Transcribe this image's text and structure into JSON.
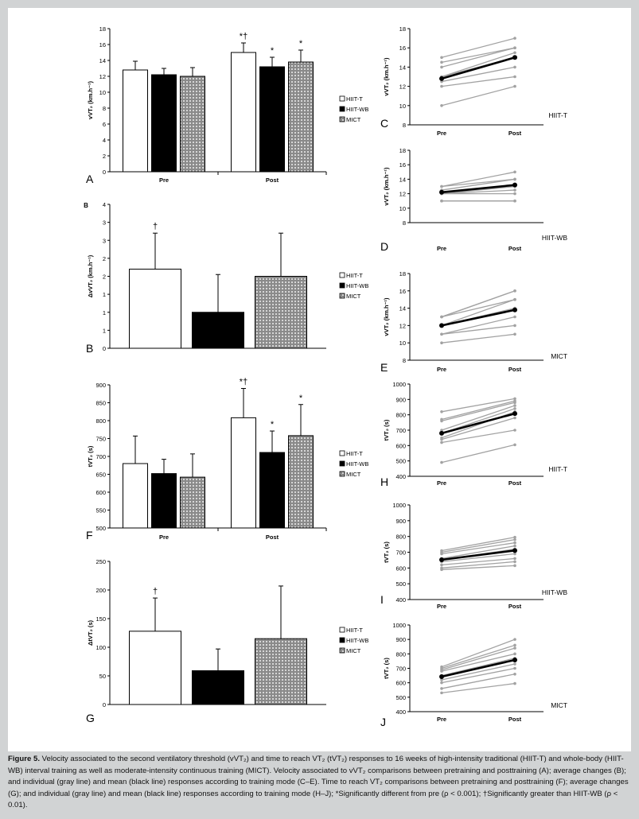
{
  "colors": {
    "white_bar": "#ffffff",
    "black_bar": "#000000",
    "pattern_bg": "#8a8a8a",
    "pattern_dot": "#d6d6d6",
    "individual_line": "#a2a2a2",
    "mean_line": "#000000"
  },
  "legend": [
    "HIIT-T",
    "HIIT-WB",
    "MICT"
  ],
  "caption": {
    "label": "Figure 5.",
    "text": "Velocity associated to the second ventilatory threshold (vVT₂) and time to reach VT₂ (tVT₂) responses to 16 weeks of high-intensity traditional (HIIT-T) and whole-body (HIIT-WB) interval training as well as moderate-intensity continuous training (MICT). Velocity associated to vVT₂ comparisons between pretraining and posttraining (A); average changes (B); and individual (gray line) and mean (black line) responses according to training mode (C–E). Time to reach VT₂ comparisons between pretraining and posttraining (F); average changes (G); and individual (gray line) and mean (black line) responses according to training mode (H–J); *Significantly different from pre (ρ < 0.001); †Significantly greater than HIIT-WB (ρ < 0.01)."
  },
  "chart_data": [
    {
      "panel": "A",
      "type": "bar",
      "ylabel": "vVT₂ (km.h⁻¹)",
      "ylim": [
        0,
        18
      ],
      "yticks": [
        "0",
        "2",
        "4",
        "6",
        "8",
        "10",
        "12",
        "14",
        "16",
        "18"
      ],
      "categories": [
        "Pre",
        "Post"
      ],
      "series": [
        {
          "name": "HIIT-T",
          "values": [
            12.8,
            15.0
          ],
          "err": [
            1.1,
            1.2
          ],
          "marks": [
            "",
            "*†"
          ]
        },
        {
          "name": "HIIT-WB",
          "values": [
            12.2,
            13.2
          ],
          "err": [
            0.8,
            1.2
          ],
          "marks": [
            "",
            "*"
          ]
        },
        {
          "name": "MICT",
          "values": [
            12.0,
            13.8
          ],
          "err": [
            1.1,
            1.5
          ],
          "marks": [
            "",
            "*"
          ]
        }
      ]
    },
    {
      "panel": "B",
      "type": "bar",
      "ylabel": "ΔvVT₂ (km.h⁻¹)",
      "ylim": [
        0,
        4
      ],
      "yticks": [
        "0",
        "1",
        "1",
        "1",
        "2",
        "2",
        "3",
        "3",
        "4"
      ],
      "categories": [
        ""
      ],
      "series": [
        {
          "name": "HIIT-T",
          "values": [
            2.2
          ],
          "err": [
            1.0
          ],
          "marks": [
            "†"
          ]
        },
        {
          "name": "HIIT-WB",
          "values": [
            1.0
          ],
          "err": [
            1.05
          ],
          "marks": [
            ""
          ]
        },
        {
          "name": "MICT",
          "values": [
            2.0
          ],
          "err": [
            1.2
          ],
          "marks": [
            ""
          ]
        }
      ]
    },
    {
      "panel": "C",
      "type": "line",
      "ylabel": "vVT₂ (km.h⁻¹)",
      "ylim": [
        8,
        18
      ],
      "yticks": [
        "8",
        "10",
        "12",
        "14",
        "16",
        "18"
      ],
      "x": [
        "Pre",
        "Post"
      ],
      "group": "HIIT-T",
      "individual": [
        [
          15,
          17
        ],
        [
          14.5,
          16
        ],
        [
          14,
          16
        ],
        [
          13,
          15.5
        ],
        [
          13,
          15
        ],
        [
          12.5,
          14
        ],
        [
          12,
          13
        ],
        [
          10,
          12
        ]
      ],
      "mean": [
        12.8,
        15.0
      ]
    },
    {
      "panel": "D",
      "type": "line",
      "ylabel": "vVT₂ (km.h⁻¹)",
      "ylim": [
        8,
        18
      ],
      "yticks": [
        "8",
        "10",
        "12",
        "14",
        "16",
        "18"
      ],
      "x": [
        "Pre",
        "Post"
      ],
      "group": "HIIT-WB",
      "individual": [
        [
          13,
          15
        ],
        [
          13,
          14
        ],
        [
          12.5,
          14
        ],
        [
          12,
          13
        ],
        [
          12,
          12.5
        ],
        [
          12,
          12
        ],
        [
          11,
          11
        ],
        [
          11,
          11
        ]
      ],
      "mean": [
        12.2,
        13.2
      ]
    },
    {
      "panel": "E",
      "type": "line",
      "ylabel": "vVT₂ (km.h⁻¹)",
      "ylim": [
        8,
        18
      ],
      "yticks": [
        "8",
        "10",
        "12",
        "14",
        "16",
        "18"
      ],
      "x": [
        "Pre",
        "Post"
      ],
      "group": "MICT",
      "individual": [
        [
          13,
          16
        ],
        [
          13,
          15
        ],
        [
          12,
          15
        ],
        [
          12,
          14
        ],
        [
          11,
          13
        ],
        [
          11,
          12
        ],
        [
          10,
          11
        ],
        [
          13,
          16
        ]
      ],
      "mean": [
        12.0,
        13.8
      ]
    },
    {
      "panel": "F",
      "type": "bar",
      "ylabel": "tVT₂ (s)",
      "ylim": [
        500,
        900
      ],
      "yticks": [
        "500",
        "550",
        "600",
        "650",
        "700",
        "750",
        "800",
        "850",
        "900"
      ],
      "categories": [
        "Pre",
        "Post"
      ],
      "series": [
        {
          "name": "HIIT-T",
          "values": [
            680,
            808
          ],
          "err": [
            77,
            82
          ],
          "marks": [
            "",
            "*†"
          ]
        },
        {
          "name": "HIIT-WB",
          "values": [
            652,
            711
          ],
          "err": [
            40,
            60
          ],
          "marks": [
            "",
            "*"
          ]
        },
        {
          "name": "MICT",
          "values": [
            642,
            758
          ],
          "err": [
            65,
            87
          ],
          "marks": [
            "",
            "*"
          ]
        }
      ]
    },
    {
      "panel": "G",
      "type": "bar",
      "ylabel": "ΔtVT₂ (s)",
      "ylim": [
        0,
        250
      ],
      "yticks": [
        "0",
        "50",
        "100",
        "150",
        "200",
        "250"
      ],
      "categories": [
        ""
      ],
      "series": [
        {
          "name": "HIIT-T",
          "values": [
            128
          ],
          "err": [
            58
          ],
          "marks": [
            "†"
          ]
        },
        {
          "name": "HIIT-WB",
          "values": [
            59
          ],
          "err": [
            38
          ],
          "marks": [
            ""
          ]
        },
        {
          "name": "MICT",
          "values": [
            115
          ],
          "err": [
            92
          ],
          "marks": [
            ""
          ]
        }
      ]
    },
    {
      "panel": "H",
      "type": "line",
      "ylabel": "tVT₂ (s)",
      "ylim": [
        400,
        1000
      ],
      "yticks": [
        "400",
        "500",
        "600",
        "700",
        "800",
        "900",
        "1000"
      ],
      "x": [
        "Pre",
        "Post"
      ],
      "group": "HIIT-T",
      "individual": [
        [
          820,
          905
        ],
        [
          770,
          890
        ],
        [
          760,
          880
        ],
        [
          700,
          860
        ],
        [
          680,
          840
        ],
        [
          650,
          820
        ],
        [
          640,
          780
        ],
        [
          620,
          700
        ],
        [
          490,
          605
        ]
      ],
      "mean": [
        680,
        808
      ]
    },
    {
      "panel": "I",
      "type": "line",
      "ylabel": "tVT₂ (s)",
      "ylim": [
        400,
        1000
      ],
      "yticks": [
        "400",
        "500",
        "600",
        "700",
        "800",
        "900",
        "1000"
      ],
      "x": [
        "Pre",
        "Post"
      ],
      "group": "HIIT-WB",
      "individual": [
        [
          710,
          795
        ],
        [
          700,
          780
        ],
        [
          690,
          760
        ],
        [
          660,
          740
        ],
        [
          650,
          720
        ],
        [
          640,
          690
        ],
        [
          620,
          660
        ],
        [
          600,
          640
        ],
        [
          590,
          615
        ]
      ],
      "mean": [
        652,
        711
      ]
    },
    {
      "panel": "J",
      "type": "line",
      "ylabel": "tVT₂ (s)",
      "ylim": [
        400,
        1000
      ],
      "yticks": [
        "400",
        "500",
        "600",
        "700",
        "800",
        "900",
        "1000"
      ],
      "x": [
        "Pre",
        "Post"
      ],
      "group": "MICT",
      "individual": [
        [
          710,
          900
        ],
        [
          700,
          860
        ],
        [
          690,
          840
        ],
        [
          680,
          800
        ],
        [
          650,
          770
        ],
        [
          620,
          730
        ],
        [
          600,
          700
        ],
        [
          560,
          660
        ],
        [
          530,
          595
        ]
      ],
      "mean": [
        642,
        758
      ]
    }
  ]
}
